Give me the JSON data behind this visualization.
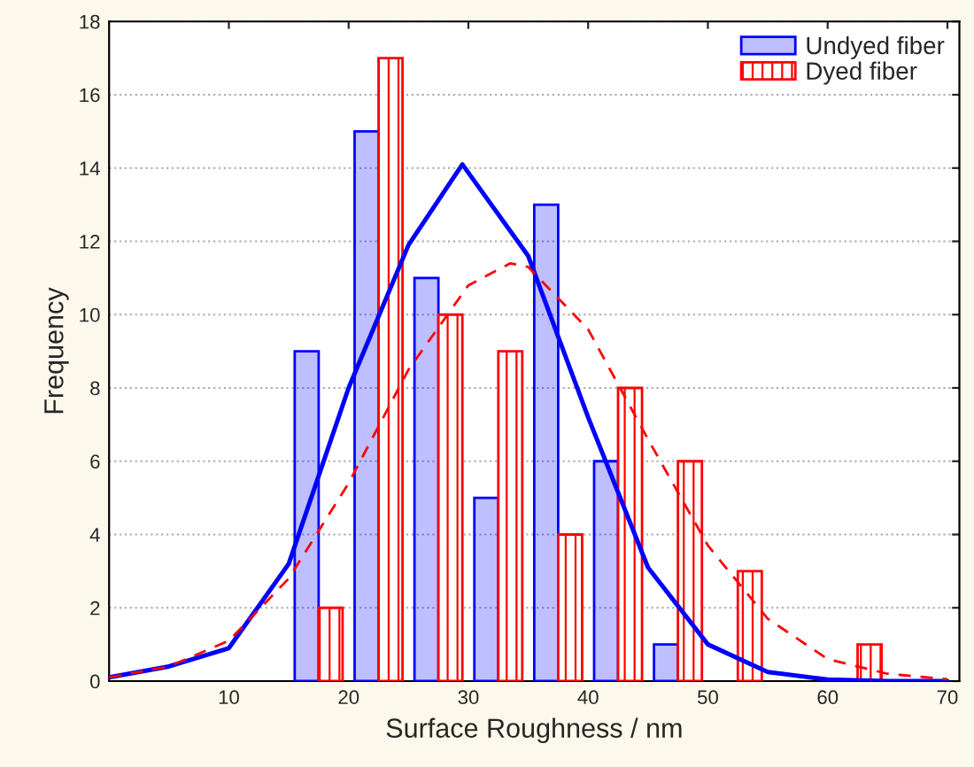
{
  "chart_data": {
    "type": "bar",
    "xlabel": "Surface Roughness / nm",
    "ylabel": "Frequency",
    "xlim": [
      0,
      71
    ],
    "xticks": [
      10,
      20,
      30,
      40,
      50,
      60,
      70
    ],
    "ylim": [
      0,
      18
    ],
    "yticks": [
      0,
      2,
      4,
      6,
      8,
      10,
      12,
      14,
      16,
      18
    ],
    "grid": "y",
    "legend": "top right",
    "series": [
      {
        "name": "Undyed fiber",
        "color": "#0000ff",
        "x": [
          16.5,
          21.5,
          26.5,
          31.5,
          36.5,
          41.5,
          46.5
        ],
        "values": [
          9,
          15,
          11,
          5,
          13,
          6,
          1
        ]
      },
      {
        "name": "Dyed fiber",
        "color": "#ff0000",
        "x": [
          18.5,
          23.5,
          28.5,
          33.5,
          38.5,
          43.5,
          48.5,
          53.5,
          63.5
        ],
        "values": [
          2,
          17,
          10,
          9,
          4,
          8,
          6,
          3,
          1
        ]
      },
      {
        "type": "line",
        "line_style": "solid",
        "color": "#0000ff",
        "x": [
          0,
          5,
          10,
          15,
          20,
          25,
          29.5,
          35,
          40,
          45,
          50,
          55,
          60,
          65,
          70
        ],
        "values": [
          0.1,
          0.4,
          0.9,
          3.2,
          8.0,
          11.9,
          14.1,
          11.6,
          7.2,
          3.1,
          1.0,
          0.25,
          0.04,
          0,
          0
        ]
      },
      {
        "type": "line",
        "line_style": "dashed",
        "color": "#ff0000",
        "x": [
          0,
          5,
          10,
          15,
          20,
          25,
          30,
          33.5,
          35,
          40,
          45,
          50,
          55,
          60,
          65,
          70
        ],
        "values": [
          0.1,
          0.4,
          1.1,
          2.8,
          5.4,
          8.5,
          10.8,
          11.4,
          11.3,
          9.6,
          6.6,
          3.7,
          1.7,
          0.6,
          0.2,
          0.05
        ]
      }
    ]
  }
}
